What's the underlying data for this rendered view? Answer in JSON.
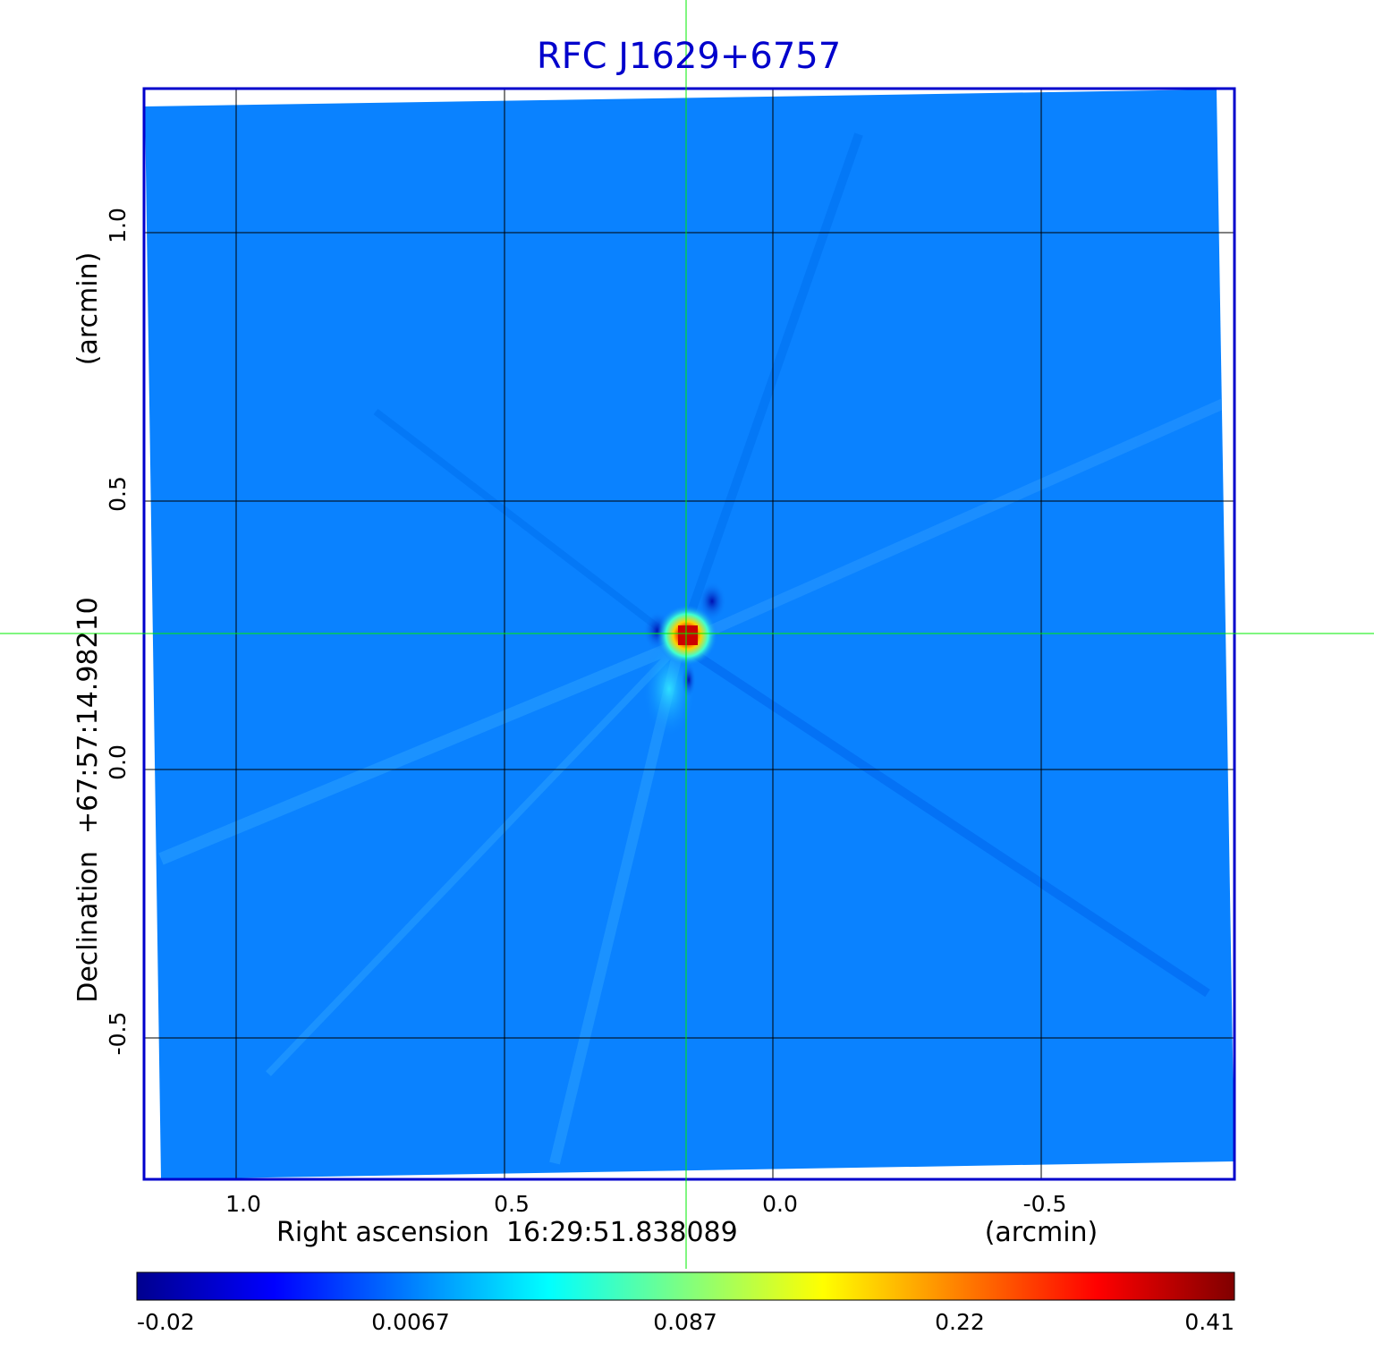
{
  "title": "RFC J1629+6757",
  "x_axis": {
    "label": "Right ascension  16:29:51.838089",
    "unit": "(arcmin)",
    "ticks": [
      "1.0",
      "0.5",
      "0.0",
      "-0.5"
    ]
  },
  "y_axis": {
    "label": "Declination  +67:57:14.98210",
    "unit": "(arcmin)",
    "ticks": [
      "1.0",
      "0.5",
      "0.0",
      "-0.5"
    ]
  },
  "colorbar": {
    "ticks": [
      "-0.02",
      "0.0067",
      "0.087",
      "0.22",
      "0.41"
    ],
    "colormap": "jet"
  },
  "colors": {
    "title": "#0000cc",
    "frame": "#0000cc",
    "crosshair": "#00ee00",
    "background_field": "#0a82ff"
  }
}
